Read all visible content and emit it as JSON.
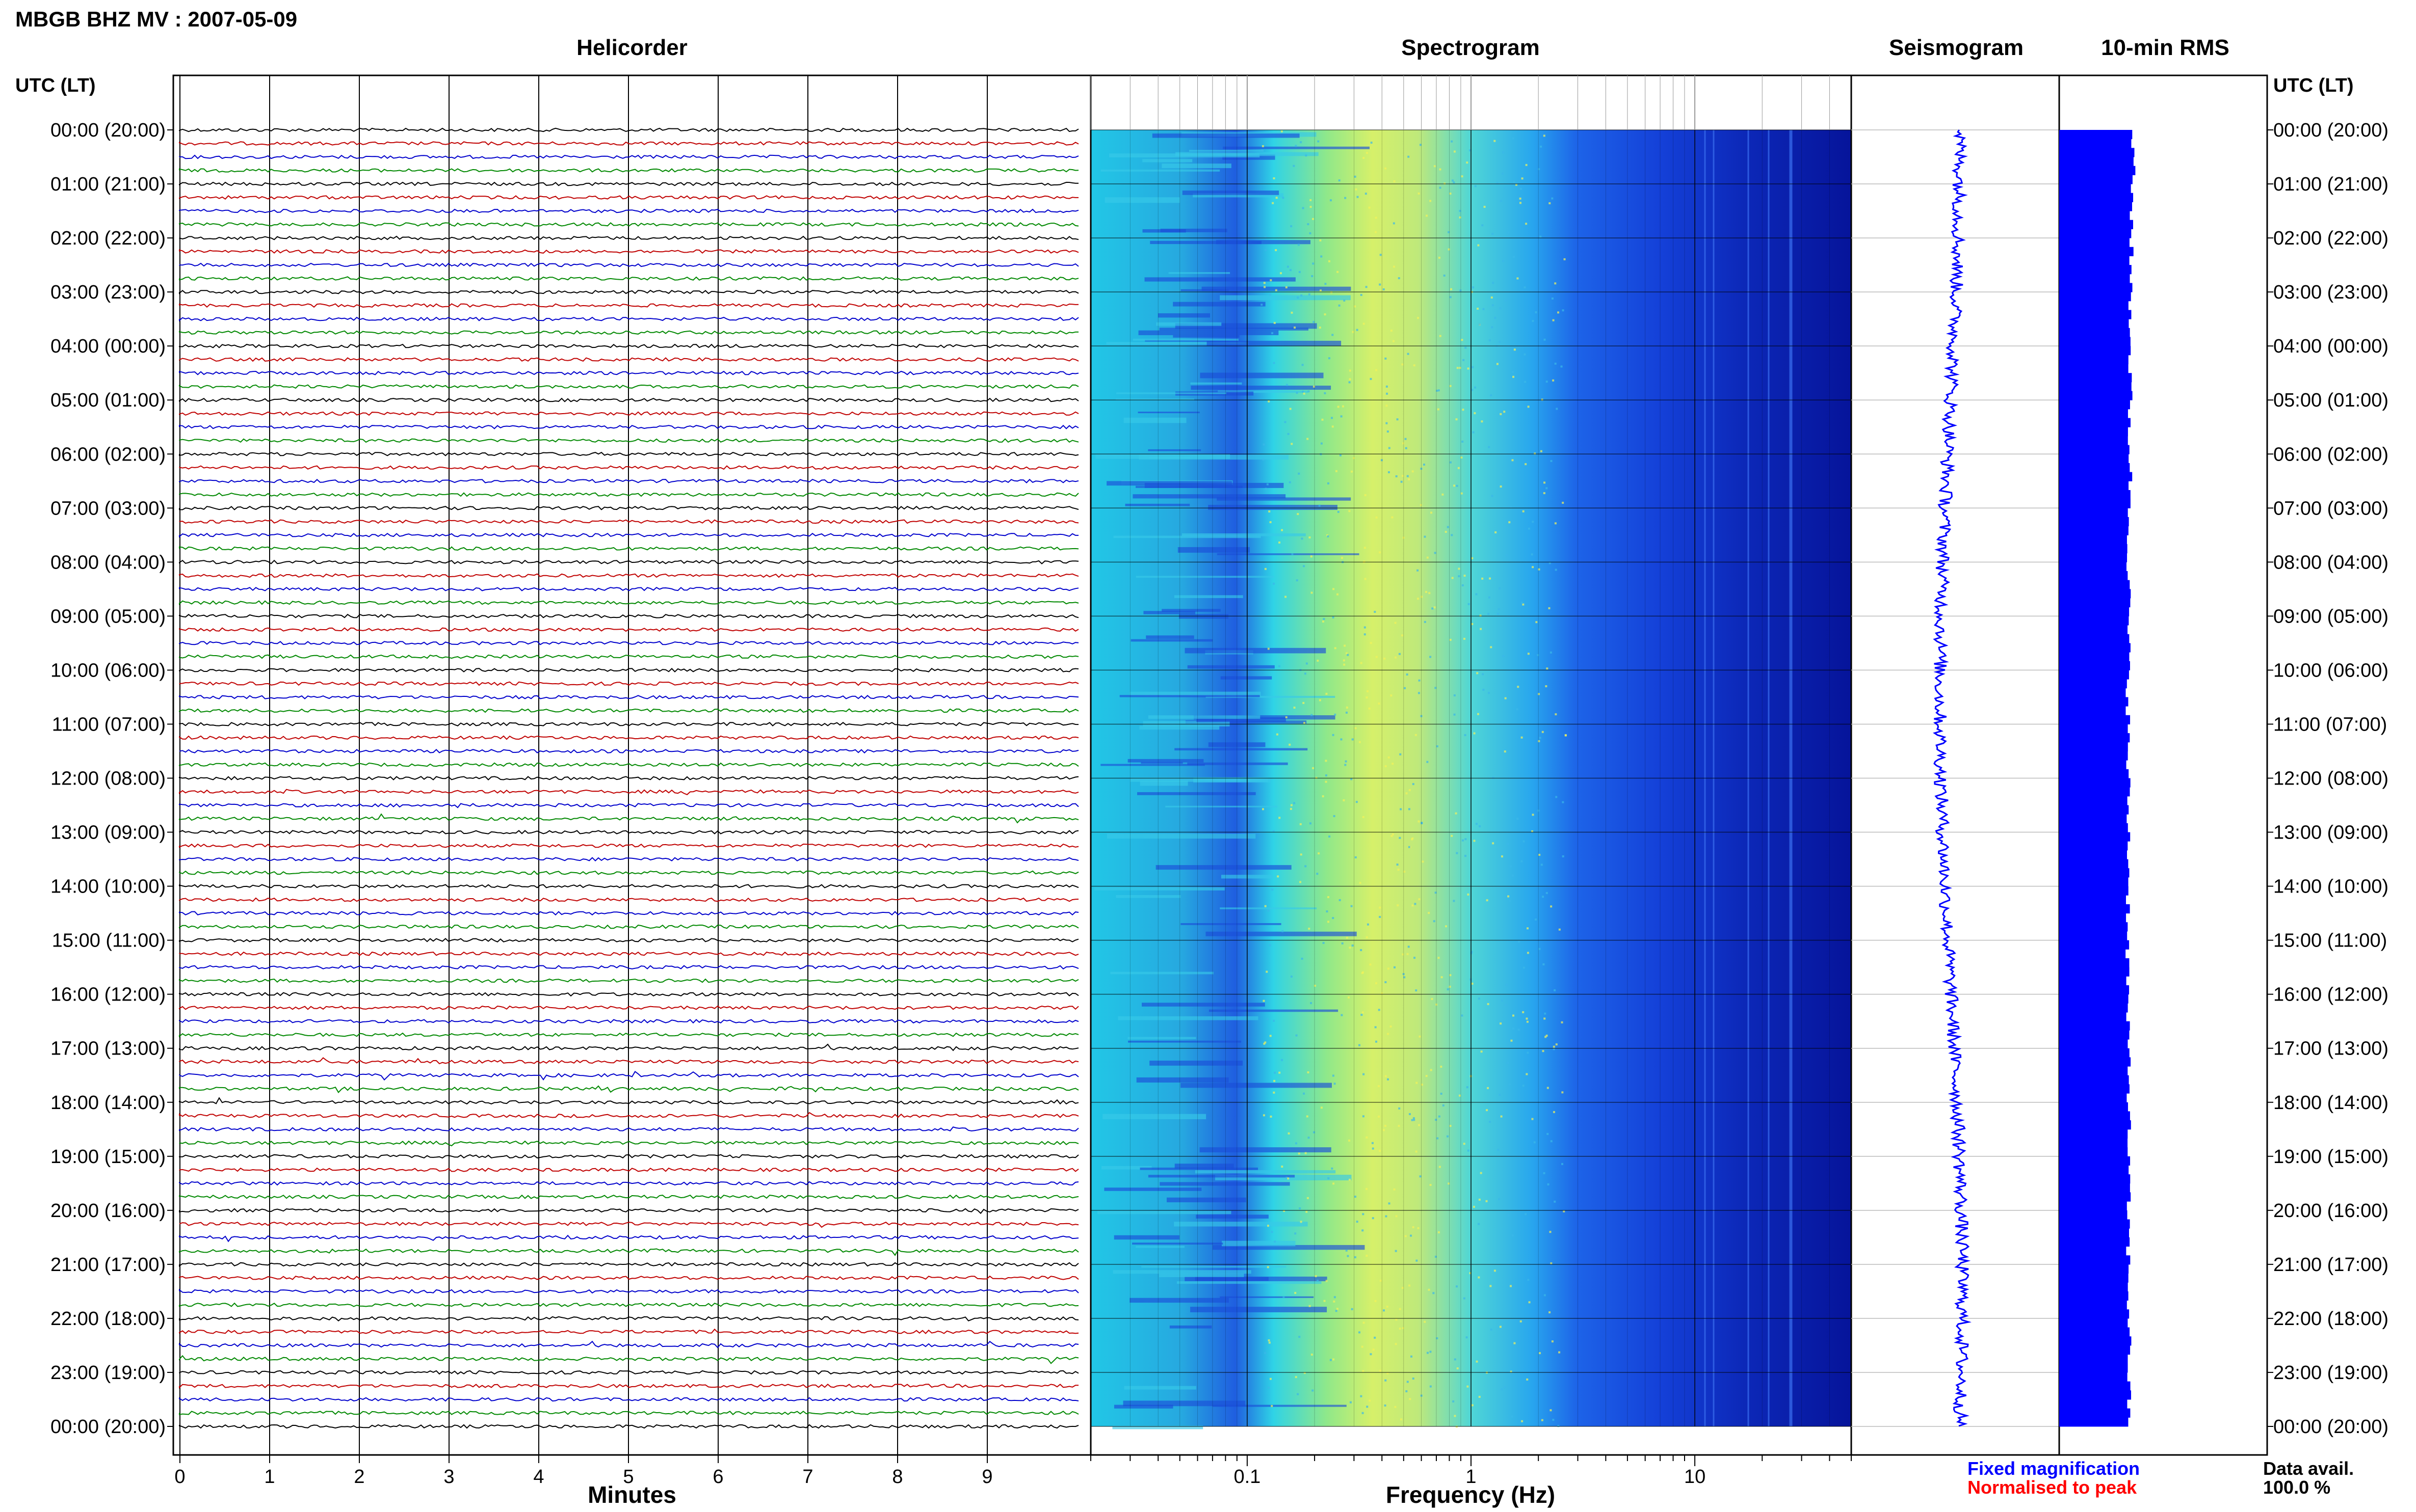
{
  "title": "MBGB BHZ MV : 2007-05-09",
  "panels": {
    "helicorder": "Helicorder",
    "spectrogram": "Spectrogram",
    "seismogram": "Seismogram",
    "rms": "10-min RMS"
  },
  "axis_header_left": "UTC (LT)",
  "axis_header_right": "UTC (LT)",
  "time_labels": [
    "00:00 (20:00)",
    "01:00 (21:00)",
    "02:00 (22:00)",
    "03:00 (23:00)",
    "04:00 (00:00)",
    "05:00 (01:00)",
    "06:00 (02:00)",
    "07:00 (03:00)",
    "08:00 (04:00)",
    "09:00 (05:00)",
    "10:00 (06:00)",
    "11:00 (07:00)",
    "12:00 (08:00)",
    "13:00 (09:00)",
    "14:00 (10:00)",
    "15:00 (11:00)",
    "16:00 (12:00)",
    "17:00 (13:00)",
    "18:00 (14:00)",
    "19:00 (15:00)",
    "20:00 (16:00)",
    "21:00 (17:00)",
    "22:00 (18:00)",
    "23:00 (19:00)",
    "00:00 (20:00)"
  ],
  "helicorder_xlabel": "Minutes",
  "helicorder_ticks": [
    "0",
    "1",
    "2",
    "3",
    "4",
    "5",
    "6",
    "7",
    "8",
    "9"
  ],
  "spectrogram_xlabel": "Frequency (Hz)",
  "spectrogram_ticks": [
    "0.1",
    "1",
    "10"
  ],
  "legend": {
    "fixed": "Fixed magnification",
    "normalised": "Normalised to peak",
    "fixed_color": "#0000ff",
    "normalised_color": "#ff0000"
  },
  "data_avail_label": "Data avail.",
  "data_avail_value": "100.0 %",
  "colors": {
    "trace_cycle": [
      "#000000",
      "#c00000",
      "#0000cc",
      "#008800"
    ],
    "rms_bar": "#0000ff",
    "seismogram": "#0000ff"
  },
  "chart_data": [
    {
      "type": "line",
      "title": "Helicorder",
      "xlabel": "Minutes",
      "ylabel": "UTC (LT)",
      "xlim": [
        0,
        10
      ],
      "traces_per_hour": 4,
      "hours": 24,
      "events_hour": [
        12,
        17,
        18,
        20,
        22
      ]
    },
    {
      "type": "heatmap",
      "title": "Spectrogram",
      "xlabel": "Frequency (Hz)",
      "xscale": "log",
      "xlim": [
        0.02,
        50
      ],
      "peak_frequency_hz": 0.35
    },
    {
      "type": "line",
      "title": "Seismogram",
      "orientation": "vertical"
    },
    {
      "type": "bar",
      "title": "10-min RMS",
      "orientation": "horizontal",
      "relative_values": [
        0.92,
        0.9,
        0.88,
        0.87,
        0.86,
        0.85,
        0.86,
        0.84,
        0.83,
        0.82,
        0.82,
        0.81,
        0.82,
        0.83,
        0.82,
        0.81,
        0.8,
        0.84,
        0.83,
        0.82,
        0.82,
        0.83,
        0.84,
        0.83,
        0.82
      ]
    }
  ]
}
